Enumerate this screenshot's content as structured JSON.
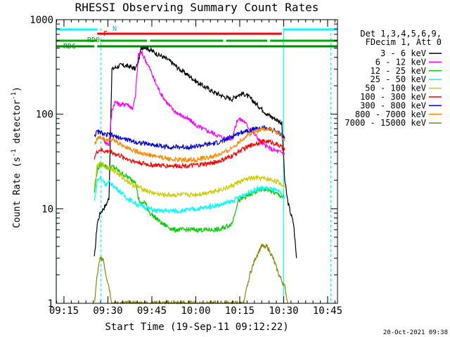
{
  "chart_data": {
    "type": "line",
    "title": "RHESSI Observing Summary Count Rates",
    "xlabel": "Start Time (19-Sep-11 09:12:22)",
    "ylabel_main": "Count Rate (s",
    "ylabel_sup": "-1",
    "ylabel_tail": " detector",
    "ylabel_end": ")",
    "y_scale": "log",
    "ylim": [
      1,
      1000
    ],
    "x_unit": "minutes after 09:12:22",
    "xlim": [
      0,
      96
    ],
    "y_ticks": [
      {
        "v": 1,
        "label": "1"
      },
      {
        "v": 10,
        "label": "10"
      },
      {
        "v": 100,
        "label": "100"
      },
      {
        "v": 1000,
        "label": "1000"
      }
    ],
    "x_ticks": [
      {
        "v": 2.63,
        "label": "09:15"
      },
      {
        "v": 17.63,
        "label": "09:30"
      },
      {
        "v": 32.63,
        "label": "09:45"
      },
      {
        "v": 47.63,
        "label": "10:00"
      },
      {
        "v": 62.63,
        "label": "10:15"
      },
      {
        "v": 77.63,
        "label": "10:30"
      },
      {
        "v": 92.63,
        "label": "10:45"
      }
    ],
    "legend_header": [
      "Det 1,3,4,5,6,9,",
      "FDecim 1, Att 0"
    ],
    "legend_position": "top-right",
    "series": [
      {
        "name": "3 - 6 keV",
        "color": "#000000",
        "x": [
          13,
          14,
          15,
          16,
          17,
          18,
          19,
          22,
          25,
          27,
          28,
          29,
          30,
          32,
          34,
          36,
          38,
          40,
          42,
          45,
          48,
          50,
          52,
          54,
          56,
          58,
          60,
          62,
          64,
          66,
          68,
          70,
          72,
          74,
          76,
          77,
          78,
          79,
          80,
          81,
          82
        ],
        "y": [
          3,
          7,
          9,
          10,
          11,
          13,
          300,
          330,
          320,
          300,
          360,
          500,
          520,
          480,
          440,
          410,
          380,
          340,
          300,
          260,
          220,
          200,
          185,
          170,
          160,
          150,
          145,
          160,
          165,
          150,
          130,
          115,
          100,
          92,
          85,
          80,
          20,
          12,
          9,
          7,
          3
        ]
      },
      {
        "name": "6 - 12 keV",
        "color": "#ff00ff",
        "x": [
          16,
          17,
          18,
          19,
          20,
          22,
          24,
          26,
          27,
          28,
          29,
          30,
          32,
          34,
          36,
          38,
          40,
          42,
          44,
          46,
          48,
          50,
          52,
          54,
          56,
          58,
          60,
          62,
          64,
          66,
          68,
          70,
          72,
          74,
          76,
          78
        ],
        "y": [
          55,
          50,
          48,
          110,
          135,
          125,
          130,
          115,
          150,
          420,
          450,
          400,
          300,
          210,
          160,
          130,
          110,
          100,
          92,
          85,
          75,
          70,
          66,
          62,
          58,
          55,
          56,
          90,
          85,
          70,
          60,
          50,
          45,
          42,
          40,
          38
        ]
      },
      {
        "name": "12 - 25 keV",
        "color": "#00cc00",
        "x": [
          13,
          14,
          15,
          16,
          17,
          18,
          19,
          20,
          22,
          24,
          26,
          27,
          28,
          29,
          30,
          32,
          34,
          36,
          38,
          40,
          42,
          44,
          46,
          48,
          50,
          52,
          54,
          56,
          58,
          60,
          62,
          64,
          66,
          68,
          70,
          72,
          74,
          76,
          78
        ],
        "y": [
          15,
          26,
          29,
          30,
          28,
          27,
          28,
          27,
          24,
          22,
          20,
          20,
          13,
          11,
          12,
          9,
          8,
          7,
          6.5,
          6,
          6,
          6,
          6,
          6,
          6,
          6,
          6,
          6,
          6.5,
          7,
          12,
          13,
          14,
          15,
          16,
          16,
          15,
          14,
          13
        ]
      },
      {
        "name": "25 - 50 keV",
        "color": "#00ffff",
        "x": [
          13,
          14,
          15,
          16,
          17,
          18,
          19,
          20,
          22,
          24,
          26,
          28,
          30,
          32,
          34,
          36,
          38,
          40,
          42,
          44,
          46,
          48,
          50,
          52,
          54,
          56,
          58,
          60,
          62,
          64,
          66,
          68,
          70,
          72,
          74,
          76,
          78
        ],
        "y": [
          12,
          20,
          21,
          20,
          18,
          19,
          18,
          17,
          15,
          13,
          12,
          11,
          10.5,
          10,
          9.5,
          9.5,
          9.5,
          9.5,
          9.5,
          9.6,
          9.8,
          10,
          10.2,
          10.5,
          10.8,
          11,
          11.5,
          12,
          13,
          14,
          15,
          16,
          16.5,
          16.5,
          16,
          15,
          13
        ]
      },
      {
        "name": "50 - 100 keV",
        "color": "#cccc00",
        "x": [
          13,
          14,
          15,
          16,
          17,
          18,
          19,
          20,
          22,
          24,
          26,
          28,
          30,
          32,
          34,
          36,
          38,
          40,
          42,
          44,
          46,
          48,
          50,
          52,
          54,
          56,
          58,
          60,
          62,
          64,
          66,
          68,
          70,
          72,
          74,
          76,
          78
        ],
        "y": [
          17,
          28,
          30,
          29,
          27,
          28,
          26,
          25,
          22,
          20,
          18,
          17,
          16,
          15,
          14.5,
          14,
          14,
          14,
          14,
          14,
          14,
          14.2,
          14.5,
          15,
          15.5,
          16,
          16.5,
          17.5,
          19,
          20,
          21,
          21,
          21,
          20.5,
          20,
          19,
          17
        ]
      },
      {
        "name": "100 - 300 keV",
        "color": "#ff0000",
        "x": [
          13,
          14,
          15,
          16,
          17,
          18,
          19,
          20,
          22,
          24,
          26,
          28,
          30,
          32,
          34,
          36,
          38,
          40,
          42,
          44,
          46,
          48,
          50,
          52,
          54,
          56,
          58,
          60,
          62,
          64,
          66,
          68,
          70,
          72,
          74,
          76,
          78
        ],
        "y": [
          35,
          40,
          42,
          41,
          40,
          41,
          40,
          38,
          36,
          34,
          32,
          31,
          30,
          29,
          29,
          28.5,
          28.5,
          28.5,
          28.5,
          28.5,
          28.5,
          29,
          29.5,
          30,
          31,
          32,
          34,
          36,
          40,
          43,
          46,
          49,
          51,
          52,
          50,
          47,
          42
        ]
      },
      {
        "name": "300 - 800 keV",
        "color": "#0000cc",
        "x": [
          13,
          14,
          15,
          16,
          17,
          18,
          19,
          20,
          22,
          24,
          26,
          28,
          30,
          32,
          34,
          36,
          38,
          40,
          42,
          44,
          46,
          48,
          50,
          52,
          54,
          56,
          58,
          60,
          62,
          64,
          66,
          68,
          70,
          72,
          74,
          76,
          78
        ],
        "y": [
          60,
          65,
          64,
          62,
          60,
          61,
          60,
          58,
          56,
          54,
          52,
          50,
          49,
          48,
          47,
          46,
          45,
          45,
          45,
          45,
          45,
          46,
          47,
          48,
          49,
          51,
          54,
          58,
          62,
          66,
          68,
          70,
          72,
          71,
          68,
          64,
          55
        ]
      },
      {
        "name": "800 - 7000 keV",
        "color": "#ff8800",
        "x": [
          13,
          14,
          15,
          16,
          17,
          18,
          19,
          20,
          22,
          24,
          26,
          28,
          30,
          32,
          34,
          36,
          38,
          40,
          42,
          44,
          46,
          48,
          50,
          52,
          54,
          56,
          58,
          60,
          62,
          64,
          66,
          68,
          70,
          72,
          74,
          76,
          78
        ],
        "y": [
          48,
          55,
          57,
          56,
          54,
          55,
          54,
          52,
          48,
          45,
          42,
          40,
          38,
          37,
          36,
          35,
          34,
          33,
          33,
          33,
          33,
          33,
          34,
          35,
          36,
          38,
          40,
          44,
          50,
          56,
          62,
          66,
          70,
          70,
          67,
          62,
          52
        ]
      },
      {
        "name": "7000 - 15000 keV",
        "color": "#888800",
        "x": [
          13,
          14,
          15,
          16,
          17,
          18,
          19,
          20,
          22,
          24,
          26,
          28,
          30,
          32,
          34,
          36,
          38,
          40,
          42,
          44,
          46,
          48,
          50,
          52,
          54,
          56,
          58,
          60,
          62,
          64,
          66,
          68,
          70,
          72,
          74,
          76,
          78,
          79
        ],
        "y": [
          1,
          2,
          3,
          3,
          2,
          1.5,
          1,
          1,
          1,
          1,
          1,
          1,
          1,
          1,
          1,
          1,
          1,
          1,
          1,
          1,
          1,
          1,
          1,
          1,
          1,
          1,
          1,
          1,
          1,
          1,
          2,
          3,
          4,
          4,
          3,
          2,
          1.5,
          1
        ]
      }
    ],
    "flag_bars": [
      {
        "name": "N",
        "color": "#00ffff",
        "label": "N",
        "segments": [
          [
            0,
            14
          ],
          [
            77.5,
            96
          ]
        ]
      },
      {
        "name": "F",
        "color": "#ff0000",
        "label": "F",
        "segments": [
          [
            14,
            77
          ]
        ]
      },
      {
        "name": "RD0",
        "color": "#00aa00",
        "label": "RD0",
        "segments": [
          [
            0,
            14
          ],
          [
            15,
            31
          ],
          [
            32,
            57
          ],
          [
            58,
            72
          ],
          [
            73,
            96
          ]
        ]
      },
      {
        "name": "RD6",
        "color": "#008800",
        "label": "RD6",
        "segments": [
          [
            0,
            13
          ],
          [
            14,
            96
          ]
        ]
      }
    ],
    "vertical_markers": [
      {
        "name": "night-start",
        "color": "#00ffff",
        "x": 0,
        "style": "solid"
      },
      {
        "name": "night-end-1",
        "color": "#00ffff",
        "x": 15.3,
        "style": "dashed"
      },
      {
        "name": "night-start-2",
        "color": "#00ffff",
        "x": 77.6,
        "style": "solid"
      },
      {
        "name": "night-end-2",
        "color": "#00ffff",
        "x": 93.7,
        "style": "dashed"
      }
    ],
    "footer_date": "20-Oct-2021 09:38"
  }
}
